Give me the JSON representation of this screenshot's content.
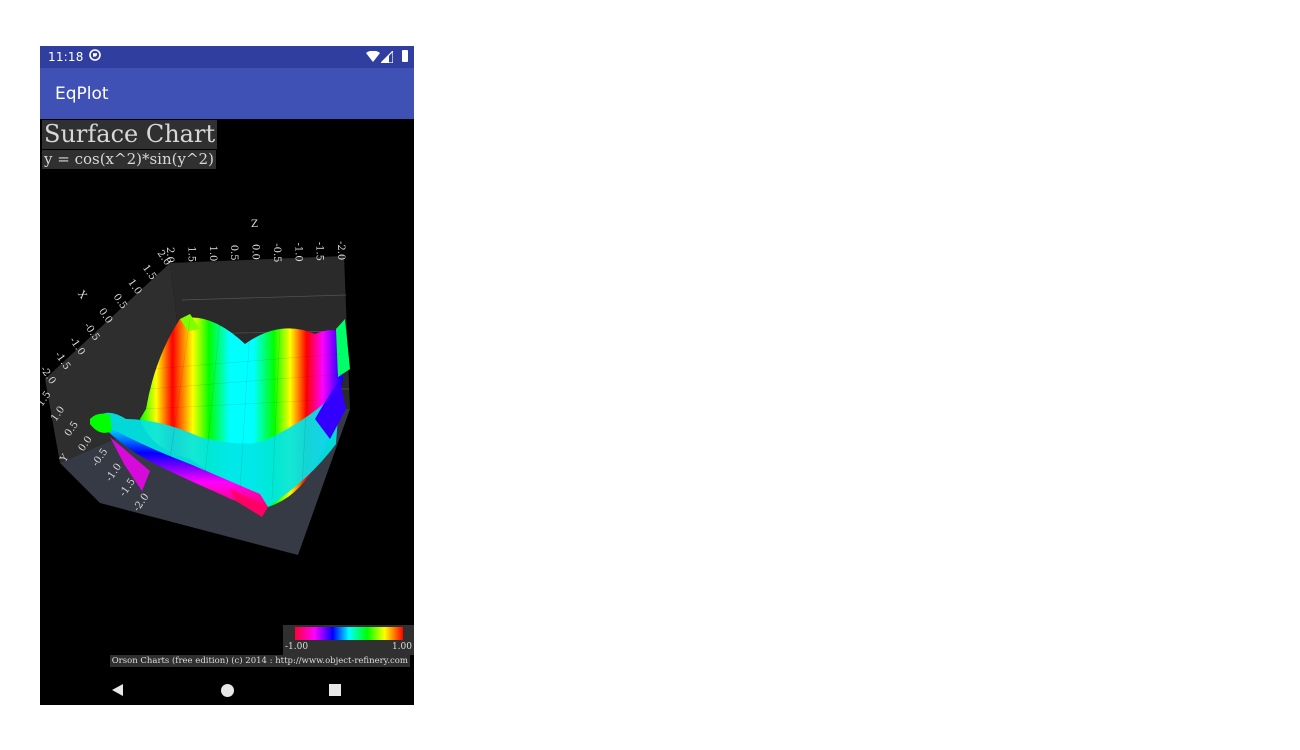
{
  "status_bar": {
    "time": "11:18",
    "icons": [
      "sync-icon",
      "wifi-icon",
      "signal-icon",
      "battery-icon"
    ]
  },
  "app_bar": {
    "title": "EqPlot",
    "color": "#3f51b5"
  },
  "chart": {
    "title": "Surface Chart",
    "subtitle": "y = cos(x^2)*sin(y^2)",
    "attribution": "Orson Charts (free edition) (c) 2014 : http://www.object-refinery.com",
    "legend": {
      "min_label": "-1.00",
      "max_label": "1.00",
      "colors": [
        "#ff0033",
        "#ff00ff",
        "#0000ff",
        "#00ffff",
        "#00ff00",
        "#ffff00",
        "#ff0000"
      ]
    }
  },
  "chart_data": {
    "type": "surface",
    "title": "Surface Chart",
    "subtitle": "y = cos(x^2)*sin(y^2)",
    "function": "cos(x^2)*sin(y^2)",
    "x_axis": {
      "label": "X",
      "ticks": [
        "-2.0",
        "-1.5",
        "-1.0",
        "-0.5",
        "0.0",
        "0.5",
        "1.0",
        "1.5",
        "2.0"
      ],
      "range": [
        -2,
        2
      ]
    },
    "y_axis": {
      "label": "Y",
      "ticks": [
        "-2.0",
        "-1.5",
        "-1.0",
        "-0.5",
        "0.0",
        "0.5",
        "1.0",
        "1.5"
      ],
      "range": [
        -2,
        2
      ]
    },
    "z_axis": {
      "label": "Z",
      "ticks": [
        "2.0",
        "1.5",
        "1.0",
        "0.5",
        "0.0",
        "-0.5",
        "-1.0",
        "-1.5",
        "-2.0"
      ],
      "range": [
        -2,
        2
      ]
    },
    "value_range": [
      -1,
      1
    ]
  },
  "nav_bar": {
    "back": "back-icon",
    "home": "home-icon",
    "recents": "recents-icon"
  }
}
